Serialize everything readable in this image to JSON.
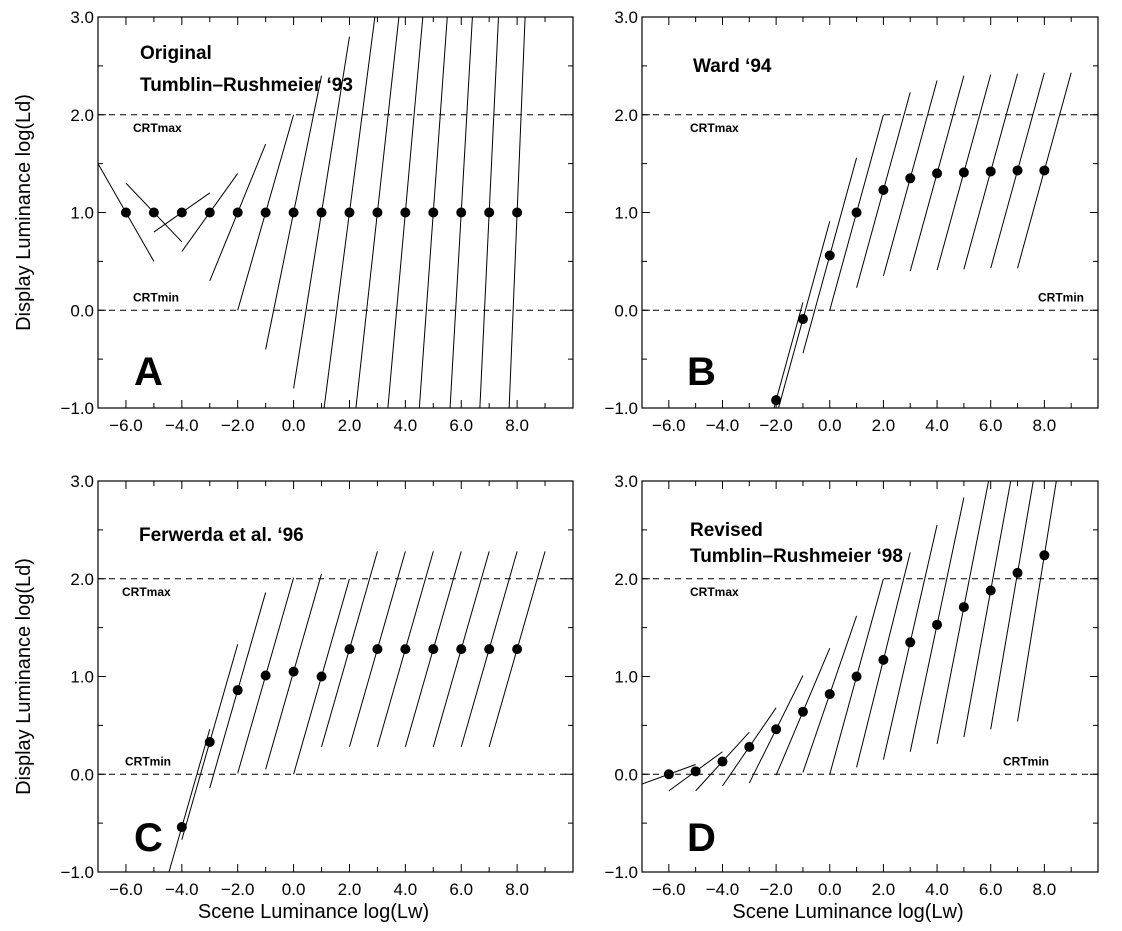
{
  "chart_data": [
    {
      "type": "scatter",
      "letter": "A",
      "title_lines": [
        "Original",
        "Tumblin–Rushmeier ‘93"
      ],
      "xlabel": "",
      "ylabel": "Display Luminance log(Ld)",
      "xlim": [
        -7,
        10
      ],
      "ylim": [
        -1,
        3
      ],
      "xticks": [
        -6,
        -4,
        -2,
        0,
        2,
        4,
        6,
        8
      ],
      "xtick_labels": [
        "−6.0",
        "−4.0",
        "−2.0",
        "0.0",
        "2.0",
        "4.0",
        "6.0",
        "8.0"
      ],
      "yticks": [
        -1,
        0,
        1,
        2,
        3
      ],
      "ytick_labels": [
        "−1.0",
        "0.0",
        "1.0",
        "2.0",
        "3.0"
      ],
      "reference_lines": [
        {
          "y": 2,
          "label": "CRTmax"
        },
        {
          "y": 0,
          "label": "CRTmin"
        }
      ],
      "points": {
        "x": [
          -6,
          -5,
          -4,
          -3,
          -2,
          -1,
          0,
          1,
          2,
          3,
          4,
          5,
          6,
          7,
          8
        ],
        "y": [
          1,
          1,
          1,
          1,
          1,
          1,
          1,
          1,
          1,
          1,
          1,
          1,
          1,
          1,
          1
        ]
      },
      "slopes": [
        -0.5,
        -0.3,
        0.2,
        0.4,
        0.7,
        1.0,
        1.4,
        1.8,
        2.2,
        2.6,
        3.2,
        4.0,
        5.0,
        6.0,
        7.0
      ],
      "segment_half_width": 1.0
    },
    {
      "type": "scatter",
      "letter": "B",
      "title_lines": [
        "Ward ‘94"
      ],
      "xlabel": "",
      "ylabel": "",
      "xlim": [
        -7,
        10
      ],
      "ylim": [
        -1,
        3
      ],
      "xticks": [
        -6,
        -4,
        -2,
        0,
        2,
        4,
        6,
        8
      ],
      "xtick_labels": [
        "−6.0",
        "−4.0",
        "−2.0",
        "0.0",
        "2.0",
        "4.0",
        "6.0",
        "8.0"
      ],
      "yticks": [
        -1,
        0,
        1,
        2,
        3
      ],
      "ytick_labels": [
        "−1.0",
        "0.0",
        "1.0",
        "2.0",
        "3.0"
      ],
      "reference_lines": [
        {
          "y": 2,
          "label": "CRTmax"
        },
        {
          "y": 0,
          "label": "CRTmin"
        }
      ],
      "points": {
        "x": [
          -2,
          -1,
          0,
          1,
          2,
          3,
          4,
          5,
          6,
          7,
          8
        ],
        "y": [
          -0.92,
          -0.09,
          0.56,
          1.0,
          1.23,
          1.35,
          1.4,
          1.41,
          1.42,
          1.43,
          1.43
        ]
      },
      "slopes": [
        1,
        1,
        1,
        1,
        1,
        1,
        1,
        1,
        1,
        1,
        1
      ],
      "segment_half_width": 1.0
    },
    {
      "type": "scatter",
      "letter": "C",
      "title_lines": [
        "Ferwerda et al. ‘96"
      ],
      "xlabel": "Scene Luminance  log(Lw)",
      "ylabel": "Display Luminance log(Ld)",
      "xlim": [
        -7,
        10
      ],
      "ylim": [
        -1,
        3
      ],
      "xticks": [
        -6,
        -4,
        -2,
        0,
        2,
        4,
        6,
        8
      ],
      "xtick_labels": [
        "−6.0",
        "−4.0",
        "−2.0",
        "0.0",
        "2.0",
        "4.0",
        "6.0",
        "8.0"
      ],
      "yticks": [
        -1,
        0,
        1,
        2,
        3
      ],
      "ytick_labels": [
        "−1.0",
        "0.0",
        "1.0",
        "2.0",
        "3.0"
      ],
      "reference_lines": [
        {
          "y": 2,
          "label": "CRTmax"
        },
        {
          "y": 0,
          "label": "CRTmin"
        }
      ],
      "points": {
        "x": [
          -4,
          -3,
          -2,
          -1,
          0,
          1,
          2,
          3,
          4,
          5,
          6,
          7,
          8
        ],
        "y": [
          -0.54,
          0.33,
          0.86,
          1.01,
          1.05,
          1.0,
          1.28,
          1.28,
          1.28,
          1.28,
          1.28,
          1.28,
          1.28
        ]
      },
      "slopes": [
        1,
        1,
        1,
        1,
        1,
        1,
        1,
        1,
        1,
        1,
        1,
        1,
        1
      ],
      "segment_half_width": 1.0
    },
    {
      "type": "scatter",
      "letter": "D",
      "title_lines": [
        "Revised",
        "Tumblin–Rushmeier ‘98"
      ],
      "xlabel": "Scene Luminance  log(Lw)",
      "ylabel": "",
      "xlim": [
        -7,
        10
      ],
      "ylim": [
        -1,
        3
      ],
      "xticks": [
        -6,
        -4,
        -2,
        0,
        2,
        4,
        6,
        8
      ],
      "xtick_labels": [
        "−6.0",
        "−4.0",
        "−2.0",
        "0.0",
        "2.0",
        "4.0",
        "6.0",
        "8.0"
      ],
      "yticks": [
        -1,
        0,
        1,
        2,
        3
      ],
      "ytick_labels": [
        "−1.0",
        "0.0",
        "1.0",
        "2.0",
        "3.0"
      ],
      "reference_lines": [
        {
          "y": 2,
          "label": "CRTmax"
        },
        {
          "y": 0,
          "label": "CRTmin"
        }
      ],
      "points": {
        "x": [
          -6,
          -5,
          -4,
          -3,
          -2,
          -1,
          0,
          1,
          2,
          3,
          4,
          5,
          6,
          7,
          8
        ],
        "y": [
          0.0,
          0.03,
          0.13,
          0.28,
          0.46,
          0.64,
          0.82,
          1.0,
          1.17,
          1.35,
          1.53,
          1.71,
          1.88,
          2.06,
          2.24
        ]
      },
      "slopes": [
        0.1,
        0.2,
        0.3,
        0.4,
        0.55,
        0.65,
        0.8,
        1.0,
        1.1,
        1.2,
        1.3,
        1.4,
        1.5,
        1.6,
        1.7
      ],
      "segment_half_width": 1.0
    }
  ]
}
